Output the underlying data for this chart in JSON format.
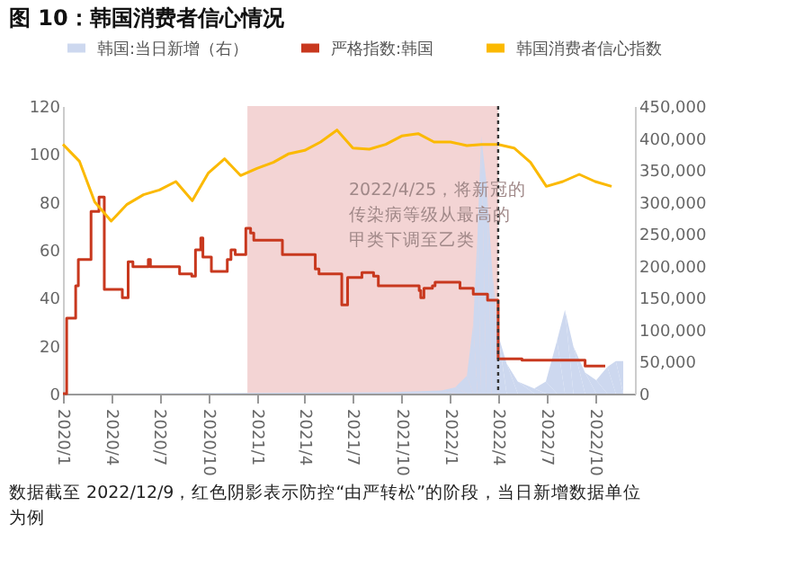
{
  "chart_data": {
    "type": "line",
    "title": "图 10：韩国消费者信心情况",
    "xlim": [
      "2020-01-01",
      "2022-12-15"
    ],
    "xticks": [
      {
        "value": "2020-01-01",
        "label": "2020/1"
      },
      {
        "value": "2020-04-01",
        "label": "2020/4"
      },
      {
        "value": "2020-07-01",
        "label": "2020/7"
      },
      {
        "value": "2020-10-01",
        "label": "2020/10"
      },
      {
        "value": "2021-01-01",
        "label": "2021/1"
      },
      {
        "value": "2021-04-01",
        "label": "2021/4"
      },
      {
        "value": "2021-07-01",
        "label": "2021/7"
      },
      {
        "value": "2021-10-01",
        "label": "2021/10"
      },
      {
        "value": "2022-01-01",
        "label": "2022/1"
      },
      {
        "value": "2022-04-01",
        "label": "2022/4"
      },
      {
        "value": "2022-07-01",
        "label": "2022/7"
      },
      {
        "value": "2022-10-01",
        "label": "2022/10"
      }
    ],
    "ylim": [
      0,
      120
    ],
    "yticks": [
      0,
      20,
      40,
      60,
      80,
      100,
      120
    ],
    "y2lim": [
      0,
      450000
    ],
    "y2ticks": [
      0,
      {
        "value": 50000,
        "label": "50,000"
      },
      {
        "value": 100000,
        "label": "100,000"
      },
      {
        "value": 150000,
        "label": "150,000"
      },
      {
        "value": 200000,
        "label": "200,000"
      },
      {
        "value": 250000,
        "label": "250,000"
      },
      {
        "value": 300000,
        "label": "300,000"
      },
      {
        "value": 350000,
        "label": "350,000"
      },
      {
        "value": 400000,
        "label": "400,000"
      },
      {
        "value": 450000,
        "label": "450,000"
      }
    ],
    "grid": false,
    "legend": "top",
    "bands": [
      {
        "axis": "x",
        "from": "2020-12-14",
        "to": "2022-04-01",
        "color": "#f2cfcf"
      }
    ],
    "ref_lines": [
      {
        "axis": "x",
        "value": "2022-04-01",
        "color": "#333333",
        "line_style": "dotted"
      }
    ],
    "series": [
      {
        "name": "韩国:当日新增（右）",
        "type": "area",
        "axis": "y2",
        "color": "#cdd8ef",
        "x": [
          "2020-01-01",
          "2021-09-01",
          "2021-12-15",
          "2022-01-10",
          "2022-02-01",
          "2022-02-13",
          "2022-02-21",
          "2022-02-28",
          "2022-03-10",
          "2022-03-20",
          "2022-04-01",
          "2022-04-17",
          "2022-05-08",
          "2022-06-08",
          "2022-06-30",
          "2022-07-21",
          "2022-08-05",
          "2022-08-21",
          "2022-09-12",
          "2022-10-03",
          "2022-10-24",
          "2022-11-09",
          "2022-11-23"
        ],
        "values": [
          0,
          2000,
          5000,
          10000,
          28000,
          110000,
          248000,
          403000,
          330000,
          202000,
          92000,
          47000,
          19000,
          8000,
          19000,
          83000,
          131000,
          74000,
          33000,
          21000,
          42000,
          51000,
          51000
        ]
      },
      {
        "name": "严格指数:韩国",
        "type": "step",
        "color": "#c8381e",
        "x": [
          "2020-01-01",
          "2020-01-08",
          "2020-01-25",
          "2020-01-30",
          "2020-02-23",
          "2020-03-09",
          "2020-03-19",
          "2020-04-22",
          "2020-05-03",
          "2020-05-12",
          "2020-06-10",
          "2020-06-14",
          "2020-08-08",
          "2020-08-31",
          "2020-09-07",
          "2020-09-17",
          "2020-09-21",
          "2020-10-07",
          "2020-11-06",
          "2020-11-13",
          "2020-11-21",
          "2020-12-11",
          "2020-12-20",
          "2020-12-26",
          "2021-02-18",
          "2021-04-21",
          "2021-04-28",
          "2021-06-10",
          "2021-06-21",
          "2021-07-18",
          "2021-08-09",
          "2021-08-18",
          "2021-11-03",
          "2021-11-06",
          "2021-11-12",
          "2021-11-28",
          "2021-12-03",
          "2022-01-19",
          "2022-02-13",
          "2022-03-12",
          "2022-04-01",
          "2022-05-16",
          "2022-09-12",
          "2022-10-20"
        ],
        "values": [
          0,
          31.5,
          45,
          56,
          76,
          82,
          43.5,
          40,
          55,
          53,
          56,
          53,
          50,
          49,
          60,
          65,
          57,
          51,
          56,
          60,
          58,
          69,
          67,
          64,
          58,
          52,
          50,
          37,
          48.5,
          50.5,
          49,
          45,
          43,
          40,
          44,
          45,
          46.5,
          44,
          41.5,
          39,
          14.5,
          14,
          11.5,
          11.5
        ]
      },
      {
        "name": "韩国消费者信心指数",
        "color": "#fbb900",
        "x": [
          "2020-01-01",
          "2020-02-01",
          "2020-03-01",
          "2020-04-01",
          "2020-05-01",
          "2020-06-01",
          "2020-07-01",
          "2020-08-01",
          "2020-09-01",
          "2020-10-01",
          "2020-11-01",
          "2020-12-01",
          "2021-01-01",
          "2021-02-01",
          "2021-03-01",
          "2021-04-01",
          "2021-05-01",
          "2021-06-01",
          "2021-07-01",
          "2021-08-01",
          "2021-09-01",
          "2021-10-01",
          "2021-11-01",
          "2021-12-01",
          "2022-01-01",
          "2022-02-01",
          "2022-03-01",
          "2022-04-01",
          "2022-05-01",
          "2022-06-01",
          "2022-07-01",
          "2022-08-01",
          "2022-09-01",
          "2022-10-01",
          "2022-11-01"
        ],
        "values": [
          104,
          97,
          80,
          72,
          79,
          83,
          85,
          88.5,
          80.5,
          92,
          98,
          91,
          94,
          96.5,
          100,
          101.5,
          105,
          110,
          102.5,
          102,
          104,
          107.5,
          108.5,
          105,
          105,
          103.5,
          104,
          104,
          102.5,
          96.5,
          86.5,
          88.5,
          91.5,
          88.5,
          86.5
        ]
      }
    ],
    "annotations": [
      "2022/4/25，将新冠的传染病等级从最高的甲类下调至乙类",
      "数据截至 2022/12/9，红色阴影表示防控“由严转松”的阶段，当日新增数据单位为例"
    ]
  }
}
